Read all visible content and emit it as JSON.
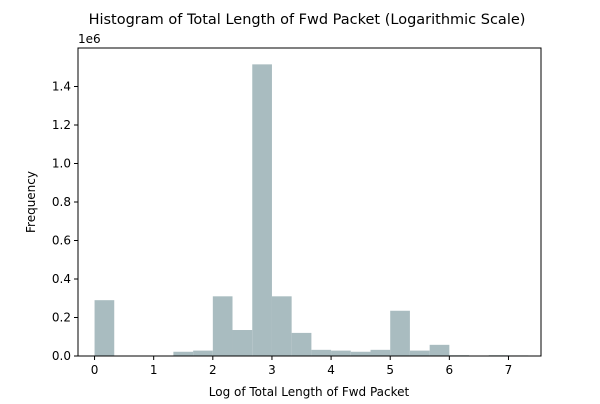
{
  "chart_data": {
    "type": "bar",
    "title": "Histogram of Total Length of Fwd Packet (Logarithmic Scale)",
    "xlabel": "Log of Total Length of Fwd Packet",
    "ylabel": "Frequency",
    "y_offset_label": "1e6",
    "xlim": [
      -0.28,
      7.55
    ],
    "ylim": [
      0,
      1.6
    ],
    "x_ticks": [
      0,
      1,
      2,
      3,
      4,
      5,
      6,
      7
    ],
    "x_tick_labels": [
      "0",
      "1",
      "2",
      "3",
      "4",
      "5",
      "6",
      "7"
    ],
    "y_ticks": [
      0.0,
      0.2,
      0.4,
      0.6,
      0.8,
      1.0,
      1.2,
      1.4
    ],
    "y_tick_labels": [
      "0.0",
      "0.2",
      "0.4",
      "0.6",
      "0.8",
      "1.0",
      "1.2",
      "1.4"
    ],
    "bar_color": "#a9bcc0",
    "bins": [
      {
        "start": 0.0,
        "end": 0.333,
        "value": 0.29
      },
      {
        "start": 0.333,
        "end": 0.667,
        "value": 0.0
      },
      {
        "start": 0.667,
        "end": 1.0,
        "value": 0.0
      },
      {
        "start": 1.0,
        "end": 1.333,
        "value": 0.0
      },
      {
        "start": 1.333,
        "end": 1.667,
        "value": 0.022
      },
      {
        "start": 1.667,
        "end": 2.0,
        "value": 0.028
      },
      {
        "start": 2.0,
        "end": 2.333,
        "value": 0.31
      },
      {
        "start": 2.333,
        "end": 2.667,
        "value": 0.135
      },
      {
        "start": 2.667,
        "end": 3.0,
        "value": 1.515
      },
      {
        "start": 3.0,
        "end": 3.333,
        "value": 0.31
      },
      {
        "start": 3.333,
        "end": 3.667,
        "value": 0.12
      },
      {
        "start": 3.667,
        "end": 4.0,
        "value": 0.032
      },
      {
        "start": 4.0,
        "end": 4.333,
        "value": 0.028
      },
      {
        "start": 4.333,
        "end": 4.667,
        "value": 0.022
      },
      {
        "start": 4.667,
        "end": 5.0,
        "value": 0.032
      },
      {
        "start": 5.0,
        "end": 5.333,
        "value": 0.235
      },
      {
        "start": 5.333,
        "end": 5.667,
        "value": 0.028
      },
      {
        "start": 5.667,
        "end": 6.0,
        "value": 0.058
      },
      {
        "start": 6.0,
        "end": 6.333,
        "value": 0.004
      },
      {
        "start": 6.333,
        "end": 6.667,
        "value": 0.0
      },
      {
        "start": 6.667,
        "end": 7.0,
        "value": 0.004
      },
      {
        "start": 7.0,
        "end": 7.333,
        "value": 0.003
      }
    ]
  }
}
